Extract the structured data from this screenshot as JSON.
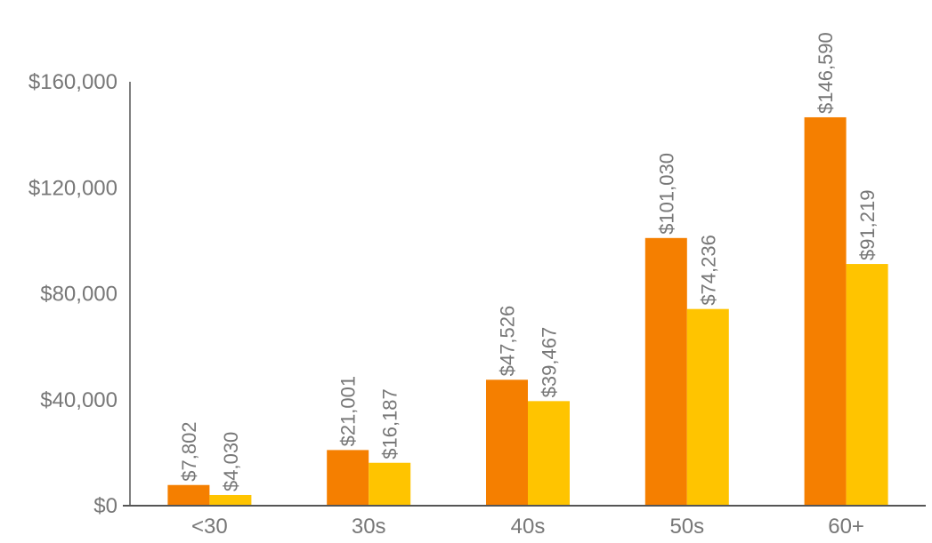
{
  "chart_data": {
    "type": "bar",
    "categories": [
      "<30",
      "30s",
      "40s",
      "50s",
      "60+"
    ],
    "series": [
      {
        "color": "#F57F00",
        "values": [
          7802,
          21001,
          47526,
          101030,
          146590
        ],
        "labels": [
          "$7,802",
          "$21,001",
          "$47,526",
          "$101,030",
          "$146,590"
        ]
      },
      {
        "color": "#FFC400",
        "values": [
          4030,
          16187,
          39467,
          74236,
          91219
        ],
        "labels": [
          "$4,030",
          "$16,187",
          "$39,467",
          "$74,236",
          "$91,219"
        ]
      }
    ],
    "y_ticks": [
      0,
      40000,
      80000,
      120000,
      160000
    ],
    "y_tick_labels": [
      "$0",
      "$40,000",
      "$80,000",
      "$120,000",
      "$160,000"
    ],
    "ylim": [
      0,
      160000
    ],
    "grid": false,
    "legend": "none",
    "title": "",
    "xlabel": "",
    "ylabel": "",
    "axis_color": "#555555",
    "text_color": "#777777"
  }
}
